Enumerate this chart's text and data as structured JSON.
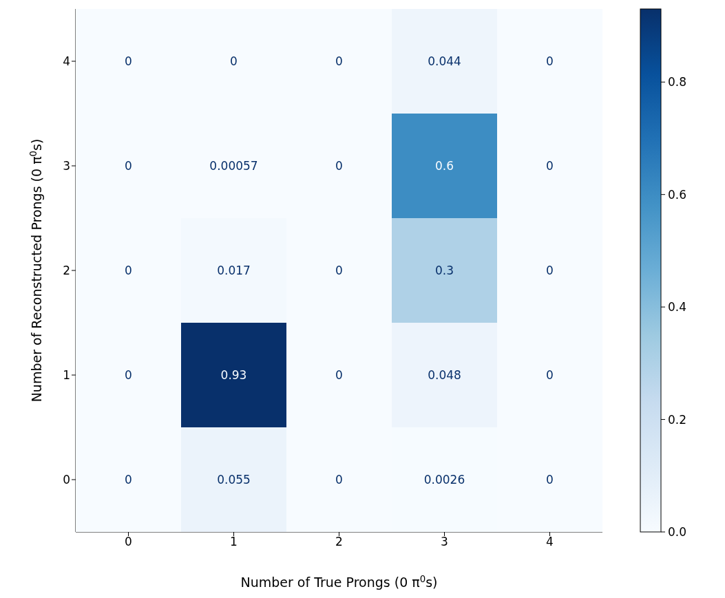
{
  "chart_data": {
    "type": "heatmap",
    "xlabel": "Number of True Prongs (0 π$^{0}$s)",
    "ylabel": "Number of Reconstructed Prongs (0 π$^{0}$s)",
    "categories": [
      "0",
      "1",
      "2",
      "3",
      "4"
    ],
    "y_categories": [
      "4",
      "3",
      "2",
      "1",
      "0"
    ],
    "cells": [
      [
        0,
        0,
        0,
        0.044,
        0
      ],
      [
        0,
        0.00057,
        0,
        0.6,
        0
      ],
      [
        0,
        0.017,
        0,
        0.3,
        0
      ],
      [
        0,
        0.93,
        0,
        0.048,
        0
      ],
      [
        0,
        0.055,
        0,
        0.0026,
        0
      ]
    ],
    "clim": [
      0,
      0.93
    ],
    "cticks": [
      {
        "value": 0,
        "label": "0.0"
      },
      {
        "value": 0.2,
        "label": "0.2"
      },
      {
        "value": 0.4,
        "label": "0.4"
      },
      {
        "value": 0.6,
        "label": "0.6"
      },
      {
        "value": 0.8,
        "label": "0.8"
      }
    ],
    "data_labels": true
  }
}
